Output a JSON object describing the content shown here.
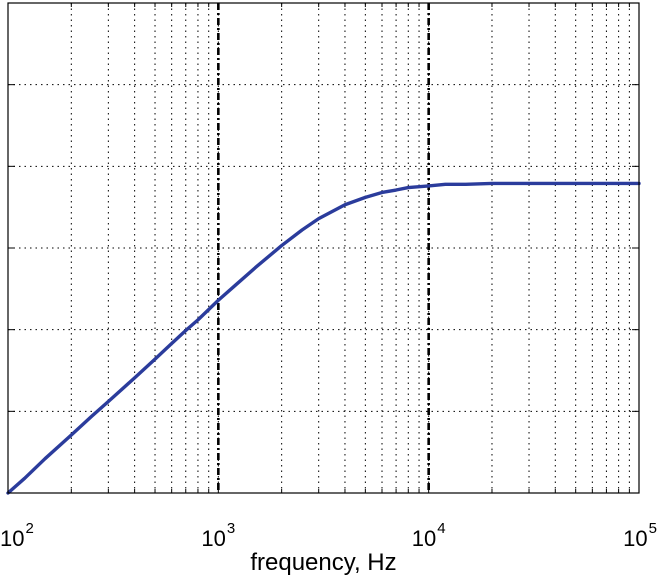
{
  "chart_data": {
    "type": "line",
    "title": "",
    "xlabel": "frequency, Hz",
    "ylabel": "",
    "xscale": "log",
    "xlim": [
      100,
      100000
    ],
    "ylim": [
      0,
      6
    ],
    "grid": true,
    "x_ticks": [
      {
        "base": "10",
        "exp": "2"
      },
      {
        "base": "10",
        "exp": "3"
      },
      {
        "base": "10",
        "exp": "4"
      },
      {
        "base": "10",
        "exp": "5"
      }
    ],
    "y_tick_values": [
      0,
      1,
      2,
      3,
      4,
      5,
      6
    ],
    "vertical_markers": [
      1000,
      10000
    ],
    "series": [
      {
        "color": "#2b3c9c",
        "x": [
          100,
          120,
          150,
          200,
          250,
          300,
          400,
          500,
          600,
          700,
          800,
          1000,
          1200,
          1500,
          2000,
          2500,
          3000,
          4000,
          5000,
          6000,
          7000,
          8000,
          10000,
          12000,
          15000,
          20000,
          30000,
          50000,
          100000
        ],
        "y": [
          0.0,
          0.18,
          0.42,
          0.71,
          0.94,
          1.12,
          1.41,
          1.64,
          1.83,
          1.99,
          2.12,
          2.36,
          2.54,
          2.76,
          3.03,
          3.22,
          3.36,
          3.53,
          3.62,
          3.68,
          3.71,
          3.74,
          3.76,
          3.78,
          3.78,
          3.79,
          3.79,
          3.79,
          3.79
        ]
      }
    ]
  }
}
